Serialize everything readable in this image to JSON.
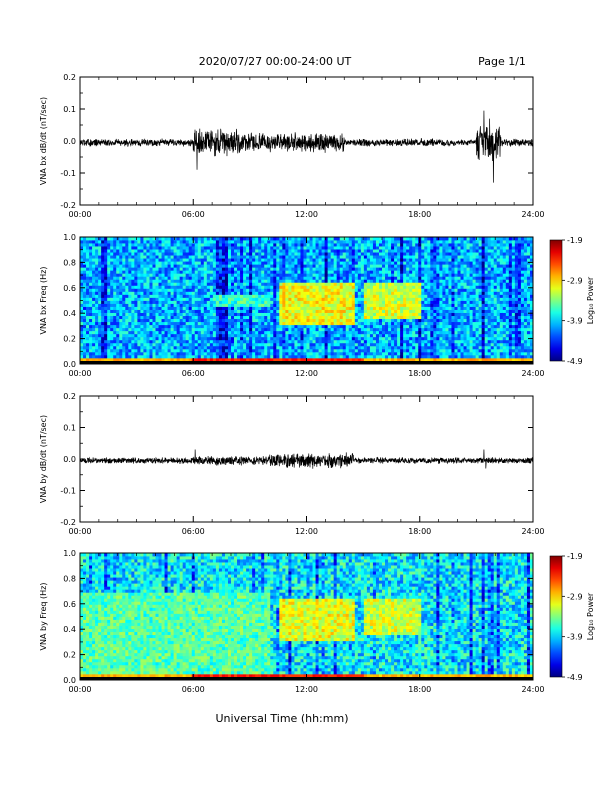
{
  "header": {
    "title": "2020/07/27  00:00-24:00 UT",
    "page": "Page 1/1"
  },
  "chart_data": [
    {
      "type": "line",
      "ylabel": "VNA bx dB/dt (nT/sec)",
      "ylim": [
        -0.2,
        0.2
      ],
      "yticks": [
        "0.2",
        "0.1",
        "0.0",
        "-0.1",
        "-0.2"
      ],
      "yticks_values": [
        0.2,
        0.1,
        0.0,
        -0.1,
        -0.2
      ],
      "xticks": [
        "00:00",
        "06:00",
        "12:00",
        "18:00",
        "24:00"
      ],
      "xlim_hours": [
        0,
        24
      ],
      "series_color": "#000000",
      "activity": [
        {
          "start_h": 0,
          "end_h": 6,
          "amp": 0.012
        },
        {
          "start_h": 6,
          "end_h": 8.5,
          "amp": 0.045
        },
        {
          "start_h": 8.5,
          "end_h": 14,
          "amp": 0.03
        },
        {
          "start_h": 14,
          "end_h": 20,
          "amp": 0.012
        },
        {
          "start_h": 21,
          "end_h": 22.3,
          "amp": 0.06
        },
        {
          "start_h": 22.3,
          "end_h": 24,
          "amp": 0.012
        }
      ],
      "spikes": [
        {
          "h": 6.2,
          "value": -0.09
        },
        {
          "h": 21.4,
          "value": 0.095
        },
        {
          "h": 21.9,
          "value": -0.13
        },
        {
          "h": 21.7,
          "value": 0.07
        }
      ]
    },
    {
      "type": "heatmap",
      "ylabel": "VNA bx Freq (Hz)",
      "ylim": [
        0.0,
        1.0
      ],
      "yticks": [
        "1.0",
        "0.8",
        "0.6",
        "0.4",
        "0.2",
        "0.0"
      ],
      "yticks_values": [
        1.0,
        0.8,
        0.6,
        0.4,
        0.2,
        0.0
      ],
      "xticks": [
        "00:00",
        "06:00",
        "12:00",
        "18:00",
        "24:00"
      ],
      "xlim_hours": [
        0,
        24
      ],
      "colorbar": {
        "label": "Log₁₀ Power",
        "ticks": [
          "-1.9",
          "-2.9",
          "-3.9",
          "-4.9"
        ],
        "range": [
          -4.9,
          -1.9
        ]
      },
      "features": [
        {
          "kind": "background",
          "level": 0.3
        },
        {
          "kind": "band",
          "t0": 10.5,
          "t1": 14.5,
          "f0": 0.3,
          "f1": 0.65,
          "level": 0.62
        },
        {
          "kind": "band",
          "t0": 15.0,
          "t1": 18.0,
          "f0": 0.35,
          "f1": 0.65,
          "level": 0.58
        },
        {
          "kind": "band",
          "t0": 7.0,
          "t1": 10.0,
          "f0": 0.45,
          "f1": 0.55,
          "level": 0.42
        },
        {
          "kind": "lowfreq",
          "t0": 6,
          "t1": 15,
          "f0": 0.0,
          "f1": 0.05,
          "level": 0.85
        }
      ]
    },
    {
      "type": "line",
      "ylabel": "VNA by dB/dt (nT/sec)",
      "ylim": [
        -0.2,
        0.2
      ],
      "yticks": [
        "0.2",
        "0.1",
        "0.0",
        "-0.1",
        "-0.2"
      ],
      "yticks_values": [
        0.2,
        0.1,
        0.0,
        -0.1,
        -0.2
      ],
      "xticks": [
        "00:00",
        "06:00",
        "12:00",
        "18:00",
        "24:00"
      ],
      "xlim_hours": [
        0,
        24
      ],
      "series_color": "#000000",
      "activity": [
        {
          "start_h": 0,
          "end_h": 6,
          "amp": 0.01
        },
        {
          "start_h": 6,
          "end_h": 10,
          "amp": 0.015
        },
        {
          "start_h": 10,
          "end_h": 14.5,
          "amp": 0.025
        },
        {
          "start_h": 14.5,
          "end_h": 24,
          "amp": 0.01
        }
      ],
      "spikes": [
        {
          "h": 6.1,
          "value": 0.03
        },
        {
          "h": 21.4,
          "value": 0.03
        },
        {
          "h": 21.5,
          "value": -0.03
        }
      ]
    },
    {
      "type": "heatmap",
      "ylabel": "VNA by Freq (Hz)",
      "ylim": [
        0.0,
        1.0
      ],
      "yticks": [
        "1.0",
        "0.8",
        "0.6",
        "0.4",
        "0.2",
        "0.0"
      ],
      "yticks_values": [
        1.0,
        0.8,
        0.6,
        0.4,
        0.2,
        0.0
      ],
      "xticks": [
        "00:00",
        "06:00",
        "12:00",
        "18:00",
        "24:00"
      ],
      "xlim_hours": [
        0,
        24
      ],
      "colorbar": {
        "label": "Log₁₀ Power",
        "ticks": [
          "-1.9",
          "-2.9",
          "-3.9",
          "-4.9"
        ],
        "range": [
          -4.9,
          -1.9
        ]
      },
      "features": [
        {
          "kind": "background",
          "level": 0.36
        },
        {
          "kind": "band",
          "t0": 10.5,
          "t1": 14.5,
          "f0": 0.3,
          "f1": 0.65,
          "level": 0.6
        },
        {
          "kind": "band",
          "t0": 15.0,
          "t1": 18.0,
          "f0": 0.35,
          "f1": 0.65,
          "level": 0.58
        },
        {
          "kind": "band",
          "t0": 0,
          "t1": 10,
          "f0": 0.05,
          "f1": 0.7,
          "level": 0.45
        },
        {
          "kind": "lowfreq",
          "t0": 6,
          "t1": 15,
          "f0": 0.0,
          "f1": 0.05,
          "level": 0.85
        }
      ]
    }
  ],
  "footer": {
    "xlabel": "Universal Time (hh:mm)"
  }
}
